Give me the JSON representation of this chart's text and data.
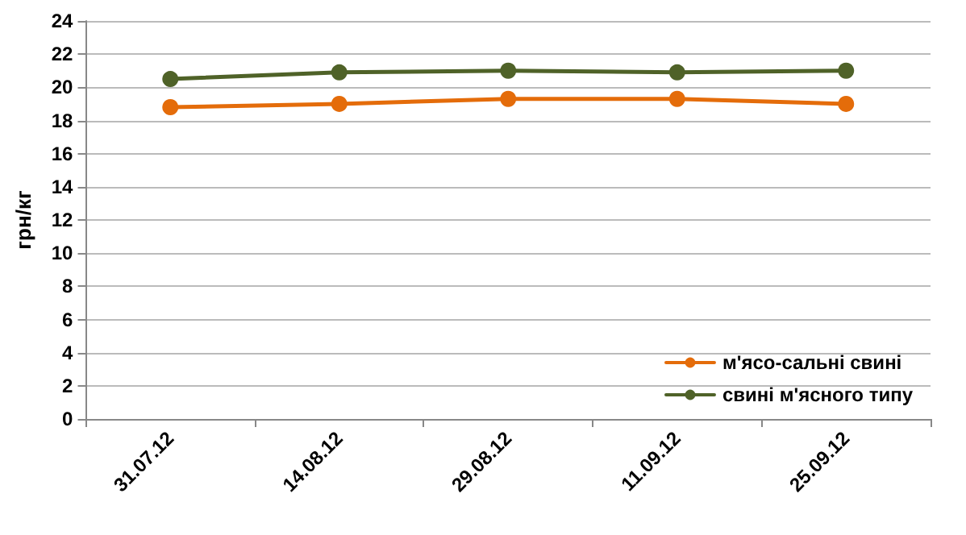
{
  "chart_data": {
    "type": "line",
    "ylabel": "грн/кг",
    "categories": [
      "31.07.12",
      "14.08.12",
      "29.08.12",
      "11.09.12",
      "25.09.12"
    ],
    "series": [
      {
        "name": "м'ясо-сальні свині",
        "color": "#e46c0a",
        "values": [
          18.8,
          19.0,
          19.3,
          19.3,
          19.0
        ]
      },
      {
        "name": "свині м'ясного типу",
        "color": "#4f6228",
        "values": [
          20.5,
          20.9,
          21.0,
          20.9,
          21.0
        ]
      }
    ],
    "ylim": [
      0,
      24
    ],
    "yticks": [
      0,
      2,
      4,
      6,
      8,
      10,
      12,
      14,
      16,
      18,
      20,
      22,
      24
    ],
    "grid": "y",
    "legend": "bottom right",
    "marker": "circle",
    "line_style": "solid"
  }
}
